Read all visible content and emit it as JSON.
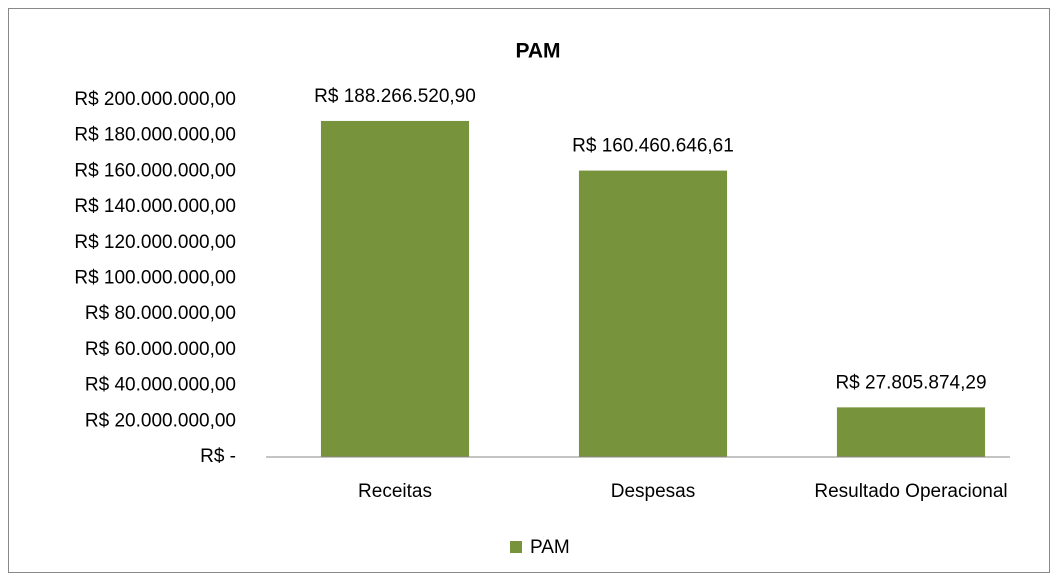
{
  "chart_data": {
    "type": "bar",
    "title": "PAM",
    "categories": [
      "Receitas",
      "Despesas",
      "Resultado Operacional"
    ],
    "series": [
      {
        "name": "PAM",
        "color": "#77933c",
        "values": [
          188266520.9,
          160460646.61,
          27805874.29
        ],
        "value_labels": [
          "R$ 188.266.520,90",
          "R$ 160.460.646,61",
          "R$ 27.805.874,29"
        ]
      }
    ],
    "ylim": [
      0,
      200000000
    ],
    "yticks": [
      {
        "value": 0,
        "label": "R$ -"
      },
      {
        "value": 20000000,
        "label": "R$ 20.000.000,00"
      },
      {
        "value": 40000000,
        "label": "R$ 40.000.000,00"
      },
      {
        "value": 60000000,
        "label": "R$ 60.000.000,00"
      },
      {
        "value": 80000000,
        "label": "R$ 80.000.000,00"
      },
      {
        "value": 100000000,
        "label": "R$ 100.000.000,00"
      },
      {
        "value": 120000000,
        "label": "R$ 120.000.000,00"
      },
      {
        "value": 140000000,
        "label": "R$ 140.000.000,00"
      },
      {
        "value": 160000000,
        "label": "R$ 160.000.000,00"
      },
      {
        "value": 180000000,
        "label": "R$ 180.000.000,00"
      },
      {
        "value": 200000000,
        "label": "R$ 200.000.000,00"
      }
    ],
    "grid": false,
    "legend": "bottom"
  }
}
